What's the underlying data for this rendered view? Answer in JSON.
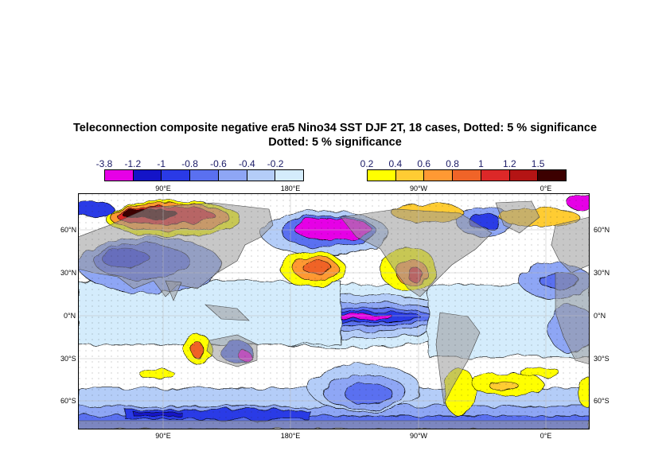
{
  "title_line1": "Teleconnection composite negative era5 Nino34 SST DJF 2T, 18 cases, Dotted: 5 % significance",
  "title_line2": "Dotted: 5 % significance",
  "colorbar_negative": {
    "labels": [
      "-3.8",
      "-1.2",
      "-1",
      "-0.8",
      "-0.6",
      "-0.4",
      "-0.2"
    ],
    "colors": [
      "#e600e6",
      "#1414c8",
      "#2a3ae6",
      "#5a70f0",
      "#8ea6f5",
      "#b4cdf8",
      "#d4ecfc"
    ]
  },
  "colorbar_positive": {
    "labels": [
      "0.2",
      "0.4",
      "0.6",
      "0.8",
      "1",
      "1.2",
      "1.5"
    ],
    "colors": [
      "#ffff00",
      "#ffcc33",
      "#ff9933",
      "#f06428",
      "#dc2828",
      "#b41414",
      "#3c0000"
    ]
  },
  "lon_labels_top": [
    "90°E",
    "180°E",
    "90°W",
    "0°E"
  ],
  "lon_labels_bottom": [
    "90°E",
    "180°E",
    "90°W",
    "0°E"
  ],
  "lat_labels": [
    "60°N",
    "30°N",
    "0°N",
    "30°S",
    "60°S"
  ],
  "colors": {
    "land": "#999999",
    "ocean_neutral": "#ffffff",
    "grid": "#bbbbbb"
  }
}
